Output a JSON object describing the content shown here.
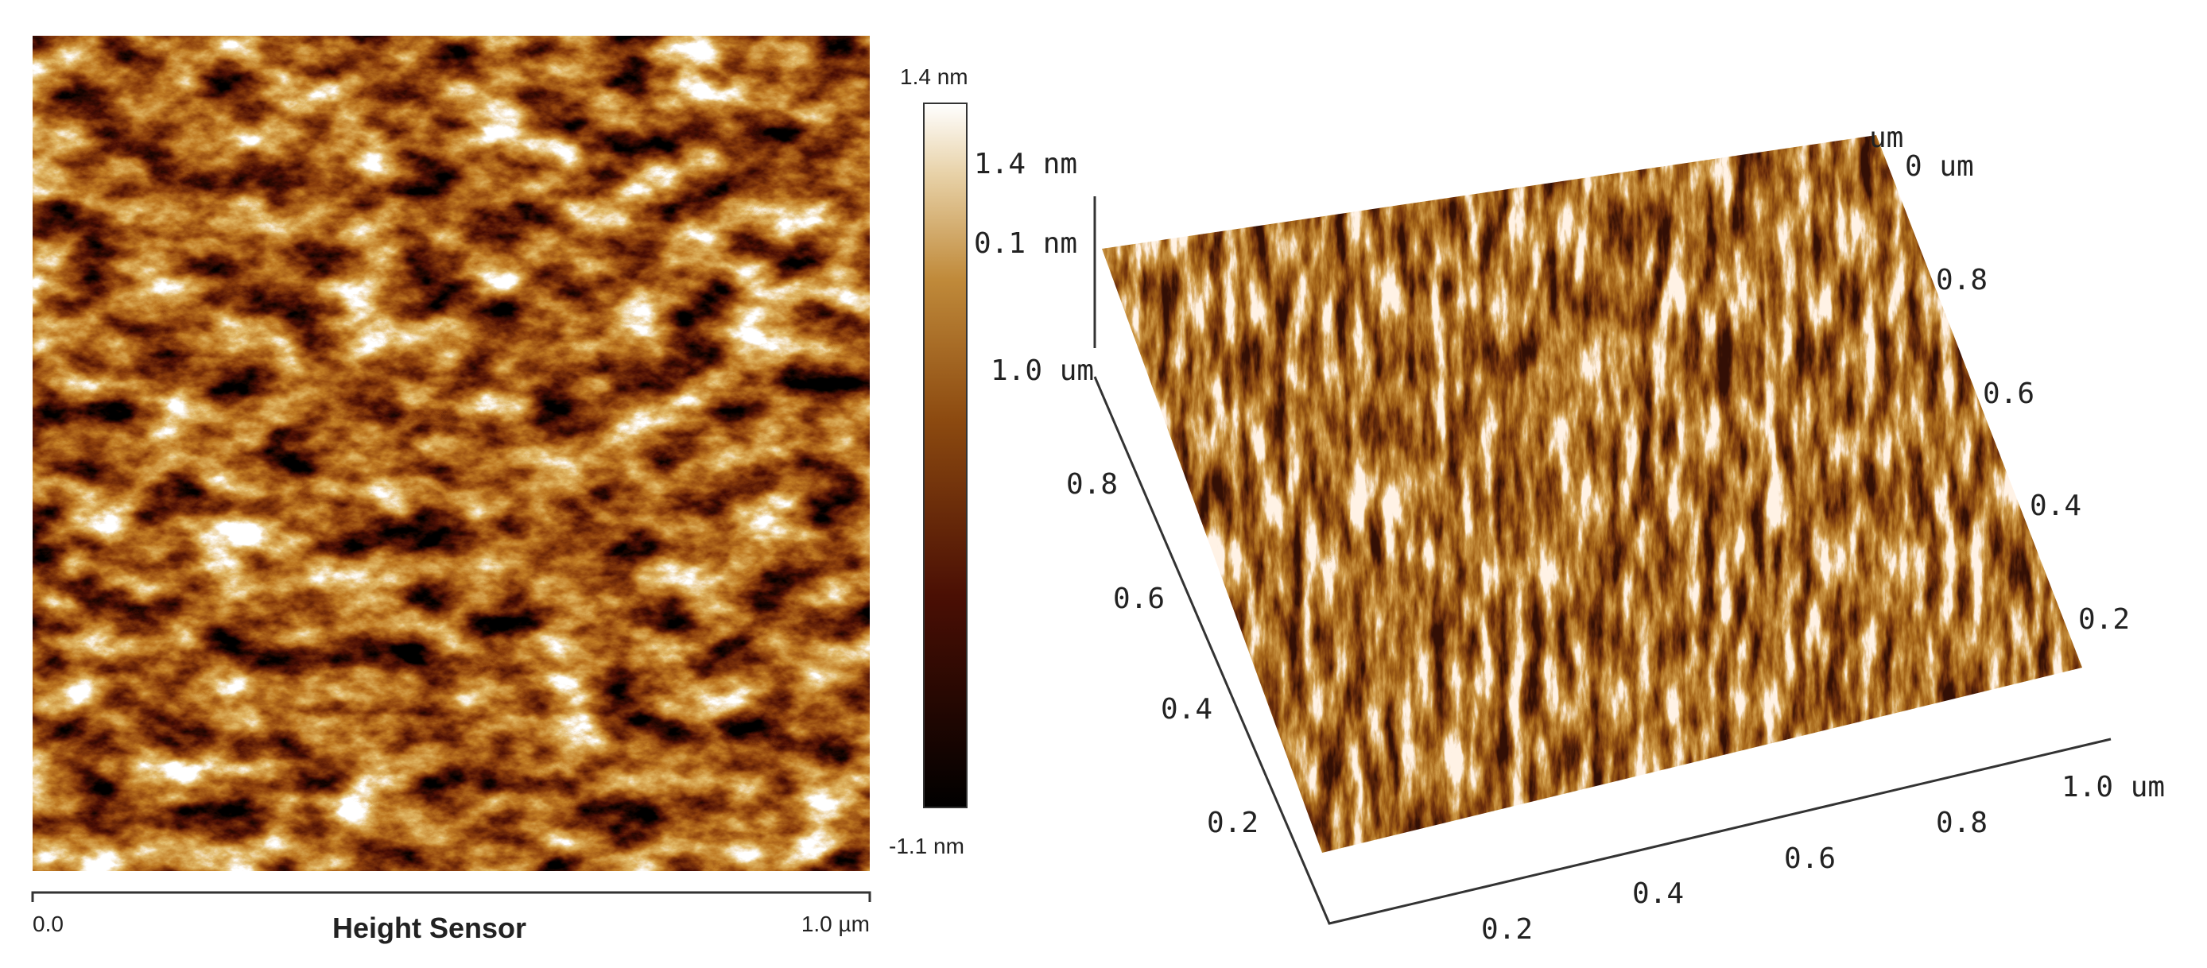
{
  "image_panel": {
    "colorbar": {
      "max_label": "1.4 nm",
      "min_label": "-1.1 nm"
    },
    "scale_bar": {
      "start": "0.0",
      "caption": "Height Sensor",
      "end": "1.0 µm"
    }
  },
  "surface_panel": {
    "z_axis": [
      "1.4 nm",
      "0.1 nm",
      "1.0 um"
    ],
    "left_axis": [
      "0.8",
      "0.6",
      "0.4",
      "0.2"
    ],
    "bottom_axis": [
      "0.2",
      "0.4",
      "0.6",
      "0.8",
      "1.0 um"
    ],
    "right_axis": [
      "um",
      "0 um",
      "0.8",
      "0.6",
      "0.4",
      "0.2"
    ]
  }
}
